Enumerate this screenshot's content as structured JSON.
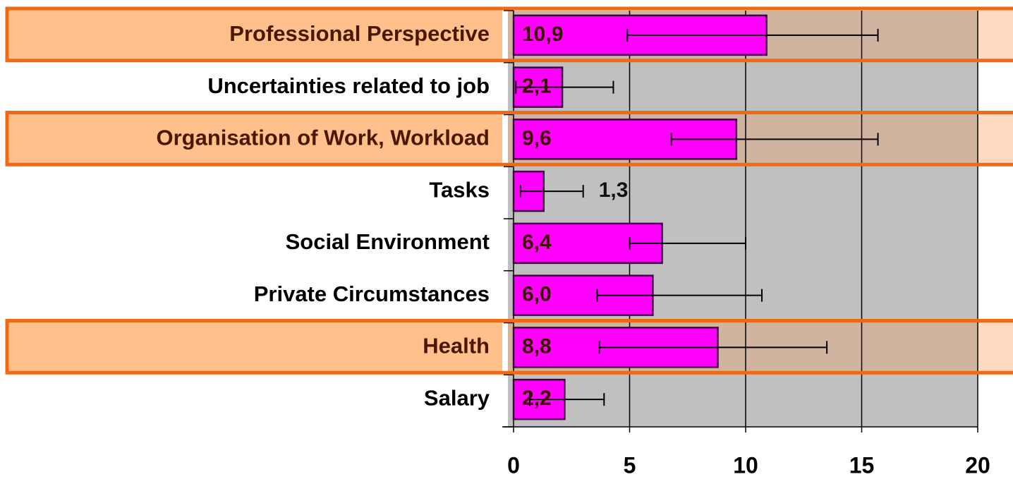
{
  "chart_data": {
    "type": "hbar",
    "categories": [
      "Professional Perspective",
      "Uncertainties related to job",
      "Organisation of Work, Workload",
      "Tasks",
      "Social Environment",
      "Private Circumstances",
      "Health",
      "Salary"
    ],
    "values": [
      10.9,
      2.1,
      9.6,
      1.3,
      6.4,
      6.0,
      8.8,
      2.2
    ],
    "value_labels": [
      "10,9",
      "2,1",
      "9,6",
      "1,3",
      "6,4",
      "6,0",
      "8,8",
      "2,2"
    ],
    "error_bars": [
      [
        4.9,
        15.7
      ],
      [
        0.1,
        4.3
      ],
      [
        6.8,
        15.7
      ],
      [
        0.3,
        3.0
      ],
      [
        5.0,
        10.0
      ],
      [
        3.6,
        10.7
      ],
      [
        3.7,
        13.5
      ],
      [
        0.7,
        3.9
      ]
    ],
    "highlight": [
      true,
      false,
      true,
      false,
      false,
      false,
      true,
      false
    ],
    "color": "#ff00ff",
    "xlim": [
      0,
      20
    ],
    "xticks": [
      0,
      5,
      10,
      15,
      20
    ],
    "grid": true
  }
}
